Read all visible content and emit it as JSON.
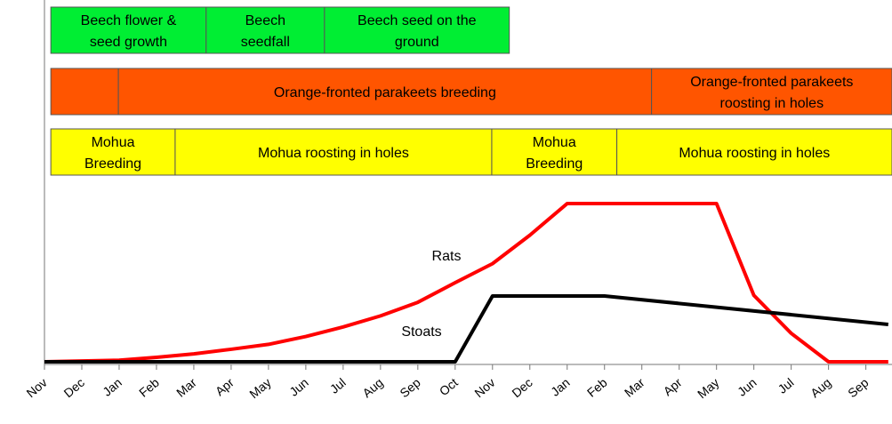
{
  "chart_data": {
    "type": "line",
    "rows": [
      {
        "color": "#00ee33",
        "segments": [
          {
            "lines": [
              "Beech flower &",
              "seed growth"
            ],
            "start": 0.17,
            "end": 4.33
          },
          {
            "lines": [
              "Beech",
              "seedfall"
            ],
            "start": 4.33,
            "end": 7.5
          },
          {
            "lines": [
              "Beech seed on the",
              "ground"
            ],
            "start": 7.5,
            "end": 12.45
          }
        ]
      },
      {
        "color": "#ff5500",
        "segments": [
          {
            "start": 0.17,
            "end": 1.98
          },
          {
            "lines": [
              "Orange-fronted parakeets breeding"
            ],
            "start": 1.98,
            "end": 16.26
          },
          {
            "lines": [
              "Orange-fronted parakeets",
              "roosting in holes"
            ],
            "start": 16.26,
            "end": 22.7
          }
        ]
      },
      {
        "color": "#ffff00",
        "segments": [
          {
            "lines": [
              "Mohua",
              "Breeding"
            ],
            "start": 0.17,
            "end": 3.5
          },
          {
            "lines": [
              "Mohua roosting in holes"
            ],
            "start": 3.5,
            "end": 11.98
          },
          {
            "lines": [
              "Mohua",
              "Breeding"
            ],
            "start": 11.98,
            "end": 15.33
          },
          {
            "lines": [
              "Mohua roosting in holes"
            ],
            "start": 15.33,
            "end": 22.7
          }
        ]
      }
    ],
    "series": [
      {
        "name": "Rats",
        "color": "#ff0000",
        "x": [
          0,
          2,
          3,
          4,
          5,
          6,
          7,
          8,
          9,
          10,
          11,
          12,
          13,
          14,
          18,
          19,
          20,
          21,
          22.6
        ],
        "values": [
          0,
          1,
          2.8,
          5,
          7.9,
          11,
          16,
          22,
          29,
          37.6,
          50,
          62,
          80,
          100,
          100,
          42,
          18,
          0,
          0
        ]
      },
      {
        "name": "Stoats",
        "color": "#000000",
        "x": [
          0,
          11,
          12,
          15,
          22.6
        ],
        "values": [
          0,
          0,
          41.6,
          41.6,
          23.6
        ]
      }
    ],
    "xlim": [
      0,
      22.7
    ],
    "ylim": [
      0,
      100
    ],
    "xticks": [
      {
        "value": 0,
        "label": "Nov"
      },
      {
        "value": 1,
        "label": "Dec"
      },
      {
        "value": 2,
        "label": "Jan"
      },
      {
        "value": 3,
        "label": "Feb"
      },
      {
        "value": 4,
        "label": "Mar"
      },
      {
        "value": 5,
        "label": "Apr"
      },
      {
        "value": 6,
        "label": "May"
      },
      {
        "value": 7,
        "label": "Jun"
      },
      {
        "value": 8,
        "label": "Jul"
      },
      {
        "value": 9,
        "label": "Aug"
      },
      {
        "value": 10,
        "label": "Sep"
      },
      {
        "value": 11,
        "label": "Oct"
      },
      {
        "value": 12,
        "label": "Nov"
      },
      {
        "value": 13,
        "label": "Dec"
      },
      {
        "value": 14,
        "label": "Jan"
      },
      {
        "value": 15,
        "label": "Feb"
      },
      {
        "value": 16,
        "label": "Mar"
      },
      {
        "value": 17,
        "label": "Apr"
      },
      {
        "value": 18,
        "label": "May"
      },
      {
        "value": 19,
        "label": "Jun"
      },
      {
        "value": 20,
        "label": "Jul"
      },
      {
        "value": 21,
        "label": "Aug"
      },
      {
        "value": 22,
        "label": "Sep"
      }
    ]
  }
}
